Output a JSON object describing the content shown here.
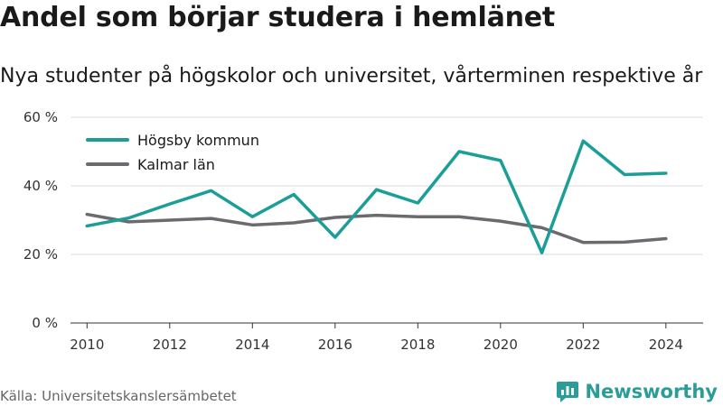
{
  "header": {
    "title": "Andel som börjar studera i hemlänet",
    "subtitle": "Nya studenter på högskolor och universitet, vårterminen respektive år"
  },
  "footer": {
    "source": "Källa: Universitetskanslersämbetet",
    "brand": "Newsworthy",
    "brand_icon": "bar-chart-logo-icon"
  },
  "colors": {
    "teal": "#1a9e97",
    "gray": "#6b6b6f",
    "grid": "#d9d9d9",
    "brand": "#2a9d99"
  },
  "chart_data": {
    "type": "line",
    "title": "Andel som börjar studera i hemlänet",
    "subtitle": "Nya studenter på högskolor och universitet, vårterminen respektive år",
    "x": [
      2010,
      2011,
      2012,
      2013,
      2014,
      2015,
      2016,
      2017,
      2018,
      2019,
      2020,
      2021,
      2022,
      2023,
      2024
    ],
    "x_ticks": [
      "2010",
      "2012",
      "2014",
      "2016",
      "2018",
      "2020",
      "2022",
      "2024"
    ],
    "y_ticks": [
      "0 %",
      "20 %",
      "40 %",
      "60 %"
    ],
    "ylim": [
      0,
      60
    ],
    "grid": true,
    "legend": "top-left",
    "series": [
      {
        "name": "Högsby kommun",
        "color": "#1a9e97",
        "values": [
          28.3,
          30.6,
          34.7,
          38.6,
          31.0,
          37.5,
          25.0,
          38.9,
          35.0,
          50.0,
          47.4,
          20.5,
          53.1,
          43.3,
          43.7
        ]
      },
      {
        "name": "Kalmar län",
        "color": "#6b6b6f",
        "values": [
          31.7,
          29.5,
          30.0,
          30.5,
          28.6,
          29.2,
          30.8,
          31.4,
          31.0,
          31.0,
          29.7,
          27.8,
          23.5,
          23.6,
          24.6
        ]
      }
    ]
  }
}
